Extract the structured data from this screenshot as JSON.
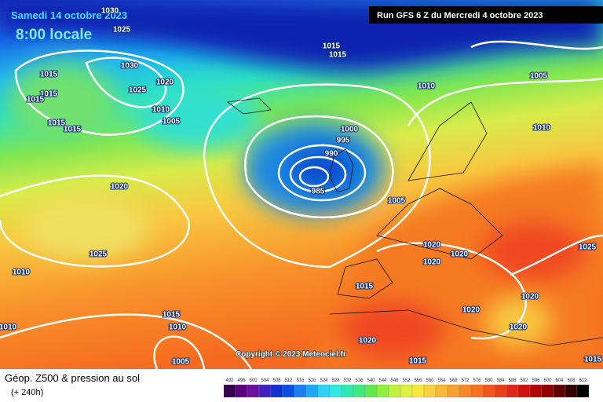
{
  "header": {
    "date": "Samedi 14 octobre 2023",
    "time": "8:00 locale",
    "run": "Run GFS 6 Z du Mercredi 4 octobre 2023"
  },
  "copyright": "Copyright © 2023 Meteociel.fr",
  "footer": {
    "title": "Géop. Z500 & pression au sol",
    "lead": "(+ 240h)"
  },
  "isobar_labels": [
    "1030",
    "1025",
    "1030",
    "1020",
    "1025",
    "1010",
    "1005",
    "1015",
    "1015",
    "1015",
    "1015",
    "1015",
    "1015",
    "1015",
    "1010",
    "1005",
    "1000",
    "995",
    "990",
    "985",
    "1005",
    "1020",
    "1025",
    "1010",
    "1010",
    "1015",
    "1010",
    "1005",
    "1020",
    "1020",
    "1020",
    "1025",
    "1015",
    "1020",
    "1020",
    "1020",
    "1020",
    "1015",
    "1015",
    "1010"
  ],
  "scale": [
    492,
    496,
    500,
    504,
    508,
    512,
    516,
    520,
    524,
    528,
    532,
    536,
    540,
    544,
    548,
    552,
    556,
    560,
    564,
    568,
    572,
    576,
    580,
    584,
    588,
    592,
    596,
    600,
    604,
    608,
    612
  ]
}
